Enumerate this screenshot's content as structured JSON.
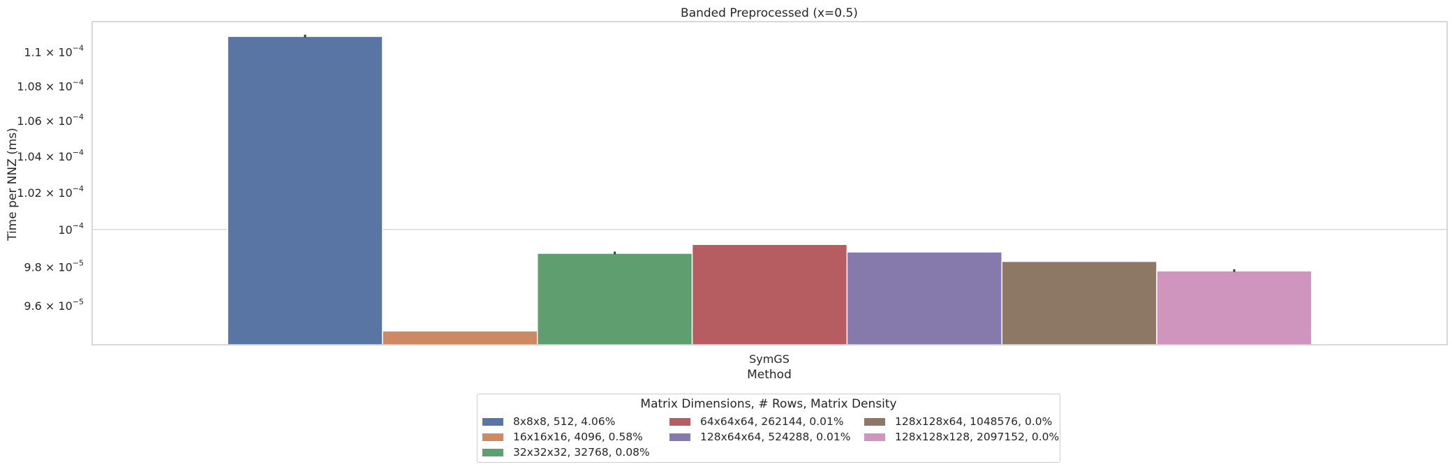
{
  "chart_data": {
    "type": "bar",
    "title": "Banded Preprocessed (x=0.5)",
    "xlabel": "Method",
    "ylabel": "Time per NNZ (ms)",
    "categories": [
      "SymGS"
    ],
    "scale": "log",
    "ylim": [
      9.4e-05,
      0.0001118
    ],
    "yticks": [
      {
        "value": 9.6e-05,
        "mantissa": "9.6",
        "exp": "−5"
      },
      {
        "value": 9.8e-05,
        "mantissa": "9.8",
        "exp": "−5"
      },
      {
        "value": 0.0001,
        "mantissa": "",
        "exp": "−4"
      },
      {
        "value": 0.000102,
        "mantissa": "1.02",
        "exp": "−4"
      },
      {
        "value": 0.000104,
        "mantissa": "1.04",
        "exp": "−4"
      },
      {
        "value": 0.000106,
        "mantissa": "1.06",
        "exp": "−4"
      },
      {
        "value": 0.000108,
        "mantissa": "1.08",
        "exp": "−4"
      },
      {
        "value": 0.00011,
        "mantissa": "1.1",
        "exp": "−4"
      }
    ],
    "grid": true,
    "legend_title": "Matrix Dimensions, # Rows, Matrix Density",
    "legend_position": "bottom-center",
    "series": [
      {
        "name": "8x8x8, 512, 4.06%",
        "values": [
          0.00011092
        ],
        "error": 2e-08,
        "color": "#5975a4"
      },
      {
        "name": "16x16x16, 4096, 0.58%",
        "values": [
          9.47e-05
        ],
        "error": 0,
        "color": "#cc8963"
      },
      {
        "name": "32x32x32, 32768, 0.08%",
        "values": [
          9.873e-05
        ],
        "error": 1.5e-08,
        "color": "#5f9e6e"
      },
      {
        "name": "64x64x64, 262144, 0.01%",
        "values": [
          9.92e-05
        ],
        "error": 0,
        "color": "#b55d60"
      },
      {
        "name": "128x64x64, 524288, 0.01%",
        "values": [
          9.88e-05
        ],
        "error": 0,
        "color": "#857aab"
      },
      {
        "name": "128x128x64, 1048576, 0.0%",
        "values": [
          9.83e-05
        ],
        "error": 0,
        "color": "#8d7866"
      },
      {
        "name": "128x128x128, 2097152, 0.0%",
        "values": [
          9.78e-05
        ],
        "error": 1.5e-08,
        "color": "#d095bf"
      }
    ]
  }
}
